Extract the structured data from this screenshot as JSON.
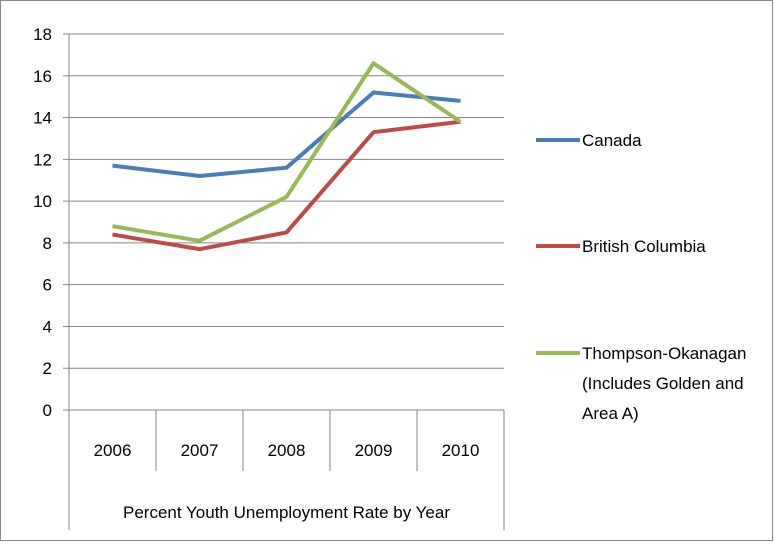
{
  "chart_data": {
    "type": "line",
    "categories": [
      "2006",
      "2007",
      "2008",
      "2009",
      "2010"
    ],
    "xlabel": "Percent Youth Unemployment Rate by Year",
    "ylabel": "",
    "ylim": [
      0,
      18
    ],
    "yticks": [
      "0",
      "2",
      "4",
      "6",
      "8",
      "10",
      "12",
      "14",
      "16",
      "18"
    ],
    "grid": true,
    "legend_position": "right",
    "series": [
      {
        "name": "Canada",
        "color": "#4a7ebb",
        "values": [
          11.7,
          11.2,
          11.6,
          15.2,
          14.8
        ]
      },
      {
        "name": "British Columbia",
        "color": "#be4b48",
        "values": [
          8.4,
          7.7,
          8.5,
          13.3,
          13.8
        ]
      },
      {
        "name": "Thompson-Okanagan (Includes Golden and Area A)",
        "legend_lines": [
          "Thompson-Okanagan",
          "(Includes Golden and",
          "Area A)"
        ],
        "color": "#98b954",
        "values": [
          8.8,
          8.1,
          10.2,
          16.6,
          13.8
        ]
      }
    ]
  }
}
